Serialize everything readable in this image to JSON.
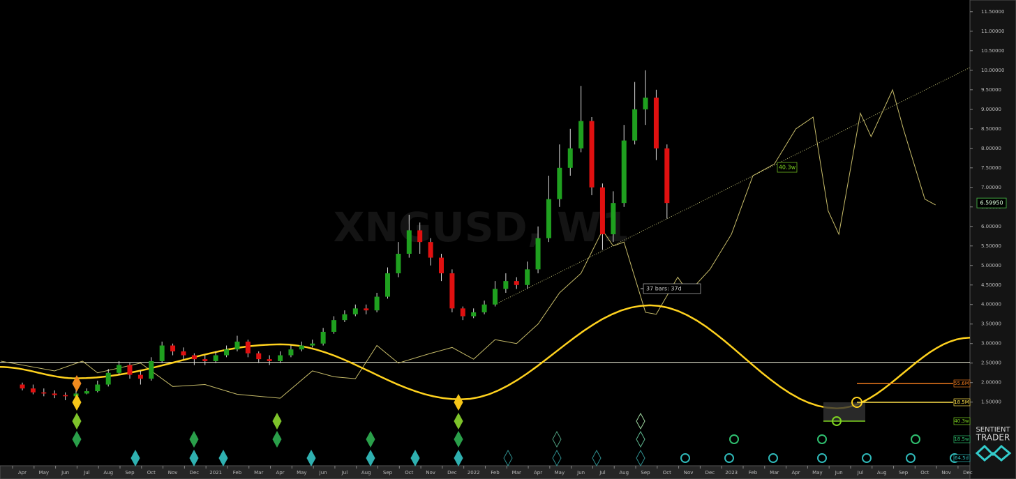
{
  "chart_data": {
    "type": "candlestick",
    "title": "XNGUSD, W1",
    "last_price_label": "6.59950",
    "brand": [
      "SENTIENT",
      "TRADER"
    ],
    "annotations": {
      "bars_label": "37 bars: 37d",
      "cycle_label": "40.3w"
    },
    "cycle_labels": [
      {
        "text": "55.6M",
        "color": "#f07b1e"
      },
      {
        "text": "18.5M",
        "color": "#ffe14a"
      },
      {
        "text": "40.3w",
        "color": "#7ed321"
      },
      {
        "text": "18.5w",
        "color": "#2fbf6f"
      },
      {
        "text": "64.5d",
        "color": "#2fb8b8"
      }
    ],
    "categories": [
      "Apr",
      "May",
      "Jun",
      "Jul",
      "Aug",
      "Sep",
      "Oct",
      "Nov",
      "Dec",
      "2021",
      "Feb",
      "Mar",
      "Apr",
      "May",
      "Jun",
      "Jul",
      "Aug",
      "Sep",
      "Oct",
      "Nov",
      "Dec",
      "2022",
      "Feb",
      "Mar",
      "Apr",
      "May",
      "Jun",
      "Jul",
      "Aug",
      "Sep",
      "Oct",
      "Nov",
      "Dec",
      "2023",
      "Feb",
      "Mar",
      "Apr",
      "May",
      "Jun",
      "Jul",
      "Aug",
      "Sep",
      "Oct",
      "Nov",
      "Dec"
    ],
    "xlim": [
      -1.04,
      44.1
    ],
    "ylim": [
      -0.13,
      11.8
    ],
    "yticks": [
      {
        "value": 1.5,
        "label": "1.50000"
      },
      {
        "value": 2,
        "label": "2.00000"
      },
      {
        "value": 2.5,
        "label": "2.50000"
      },
      {
        "value": 3,
        "label": "3.00000"
      },
      {
        "value": 3.5,
        "label": "3.50000"
      },
      {
        "value": 4,
        "label": "4.00000"
      },
      {
        "value": 4.5,
        "label": "4.50000"
      },
      {
        "value": 5,
        "label": "5.00000"
      },
      {
        "value": 5.5,
        "label": "5.50000"
      },
      {
        "value": 6,
        "label": "6.00000"
      },
      {
        "value": 6.5,
        "label": "6.50000"
      },
      {
        "value": 7,
        "label": "7.00000"
      },
      {
        "value": 7.5,
        "label": "7.50000"
      },
      {
        "value": 8,
        "label": "8.00000"
      },
      {
        "value": 8.5,
        "label": "8.50000"
      },
      {
        "value": 9,
        "label": "9.00000"
      },
      {
        "value": 9.5,
        "label": "9.50000"
      },
      {
        "value": 10,
        "label": "10.00000"
      },
      {
        "value": 10.5,
        "label": "10.50000"
      },
      {
        "value": 11,
        "label": "11.00000"
      },
      {
        "value": 11.5,
        "label": "11.50000"
      }
    ],
    "x": [
      0,
      0.5,
      1,
      1.5,
      2,
      2.5,
      3,
      3.5,
      4,
      4.5,
      5,
      5.5,
      6,
      6.5,
      7,
      7.5,
      8,
      8.5,
      9,
      9.5,
      10,
      10.5,
      11,
      11.5,
      12,
      12.5,
      13,
      13.5,
      14,
      14.5,
      15,
      15.5,
      16,
      16.5,
      17,
      17.5,
      18,
      18.5,
      19,
      19.5,
      20,
      20.5,
      21,
      21.5,
      22,
      22.5,
      23,
      23.5,
      24,
      24.5,
      25,
      25.5,
      26,
      26.5,
      27,
      27.5,
      28,
      28.5,
      29,
      29.5,
      30
    ],
    "open": [
      1.95,
      1.85,
      1.75,
      1.72,
      1.68,
      1.65,
      1.72,
      1.78,
      1.95,
      2.25,
      2.45,
      2.2,
      2.1,
      2.55,
      2.95,
      2.8,
      2.7,
      2.6,
      2.55,
      2.7,
      2.85,
      3.05,
      2.75,
      2.6,
      2.55,
      2.7,
      2.85,
      2.95,
      3.0,
      3.3,
      3.6,
      3.75,
      3.9,
      3.85,
      4.2,
      4.8,
      5.3,
      5.9,
      5.6,
      5.2,
      4.8,
      3.9,
      3.7,
      3.8,
      4.0,
      4.4,
      4.6,
      4.5,
      4.9,
      5.7,
      6.7,
      7.5,
      8.0,
      8.7,
      7.0,
      5.8,
      6.6,
      8.2,
      9.0,
      9.3,
      8.0
    ],
    "high": [
      2.0,
      1.95,
      1.85,
      1.8,
      1.75,
      1.8,
      1.85,
      2.05,
      2.35,
      2.55,
      2.5,
      2.3,
      2.65,
      3.05,
      3.0,
      2.9,
      2.75,
      2.7,
      2.8,
      2.95,
      3.2,
      3.1,
      2.8,
      2.7,
      2.8,
      2.95,
      3.05,
      3.1,
      3.4,
      3.7,
      3.85,
      4.0,
      4.0,
      4.3,
      4.95,
      5.6,
      6.3,
      6.1,
      5.7,
      5.3,
      4.9,
      3.95,
      3.9,
      4.1,
      4.6,
      4.8,
      4.7,
      5.1,
      6.0,
      7.3,
      8.1,
      8.5,
      9.6,
      8.8,
      7.1,
      6.9,
      8.6,
      9.7,
      10.0,
      9.5,
      8.1
    ],
    "low": [
      1.8,
      1.7,
      1.65,
      1.6,
      1.55,
      1.6,
      1.7,
      1.75,
      1.9,
      2.2,
      2.1,
      1.95,
      2.05,
      2.5,
      2.7,
      2.6,
      2.45,
      2.45,
      2.5,
      2.65,
      2.8,
      2.65,
      2.5,
      2.45,
      2.5,
      2.65,
      2.8,
      2.9,
      2.95,
      3.25,
      3.55,
      3.7,
      3.75,
      3.8,
      4.15,
      4.7,
      5.2,
      5.3,
      5.0,
      4.6,
      3.8,
      3.6,
      3.65,
      3.75,
      3.95,
      4.3,
      4.4,
      4.4,
      4.8,
      5.6,
      6.5,
      7.3,
      7.9,
      6.8,
      5.4,
      5.6,
      6.5,
      8.1,
      8.6,
      7.7,
      6.2
    ],
    "close": [
      1.85,
      1.75,
      1.72,
      1.68,
      1.65,
      1.72,
      1.78,
      1.95,
      2.25,
      2.45,
      2.2,
      2.1,
      2.55,
      2.95,
      2.8,
      2.7,
      2.6,
      2.55,
      2.7,
      2.85,
      3.05,
      2.75,
      2.6,
      2.55,
      2.7,
      2.85,
      2.95,
      3.0,
      3.3,
      3.6,
      3.75,
      3.9,
      3.85,
      4.2,
      4.8,
      5.3,
      5.9,
      5.6,
      5.2,
      4.8,
      3.9,
      3.7,
      3.8,
      4.0,
      4.4,
      4.6,
      4.5,
      4.9,
      5.7,
      6.7,
      7.5,
      8.0,
      8.7,
      7.0,
      5.8,
      6.6,
      8.2,
      9.0,
      9.3,
      8.0,
      6.6
    ],
    "up_color": "#1fa01f",
    "down_color": "#e01010",
    "composite": {
      "color": "#c8bd6a",
      "x": [
        -1,
        1.5,
        2.8,
        3.5,
        5.5,
        7,
        8.5,
        10,
        12,
        13.5,
        14.5,
        15.5,
        16.5,
        17.5,
        19,
        20,
        21,
        22,
        23,
        24,
        25,
        26,
        27,
        27.5,
        28,
        29,
        29.5,
        30.5,
        31,
        32,
        33,
        34,
        35,
        36,
        36.8,
        37.5,
        38,
        39,
        39.5,
        40.5,
        41,
        42,
        42.5
      ],
      "values": [
        2.55,
        2.3,
        2.55,
        2.25,
        2.5,
        1.9,
        1.95,
        1.7,
        1.6,
        2.3,
        2.15,
        2.1,
        2.95,
        2.5,
        2.75,
        2.9,
        2.6,
        3.1,
        3.0,
        3.5,
        4.3,
        4.8,
        5.9,
        5.5,
        5.6,
        3.8,
        3.75,
        4.7,
        4.3,
        4.9,
        5.8,
        7.3,
        7.6,
        8.5,
        8.8,
        6.4,
        5.8,
        8.9,
        8.3,
        9.5,
        8.5,
        6.7,
        6.55
      ]
    },
    "cycle": {
      "color": "#ffd21e",
      "x": [
        -1.04,
        2.5,
        12,
        20.4,
        29.2,
        37.9,
        44.1
      ],
      "values": [
        2.4,
        2.11,
        2.98,
        1.57,
        3.98,
        1.34,
        3.15
      ]
    },
    "hline": {
      "value": 2.52,
      "color": "#f2f2dc"
    },
    "trendline": {
      "x": [
        22.0,
        44.1
      ],
      "values": [
        4.0,
        10.07
      ],
      "color": "#c8c87a"
    }
  }
}
